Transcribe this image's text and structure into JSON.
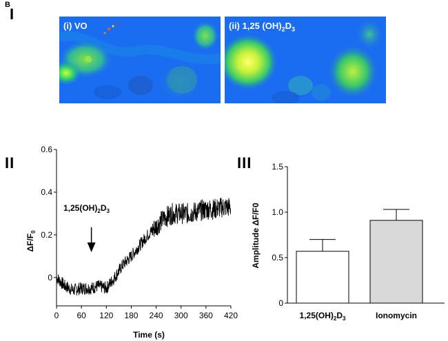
{
  "figure": {
    "panel_letter": "B",
    "panel_I": "I",
    "panel_II": "II",
    "panel_III": "III"
  },
  "images": [
    {
      "label_main": "(i) VO",
      "label_sub": ""
    },
    {
      "label_main": "(ii) 1,25 (OH)",
      "label_sub": "2",
      "label_tail": "D",
      "label_sub2": "3"
    }
  ],
  "colors": {
    "bar1": "#ffffff",
    "bar2": "#d9d9d9",
    "trace": "#000000",
    "cell_bg": "#1a6cf0"
  },
  "chart_data": [
    {
      "type": "line",
      "title": "",
      "xlabel": "Time (s)",
      "ylabel_main": "ΔF/F",
      "ylabel_sub": "0",
      "xlim": [
        0,
        420
      ],
      "ylim": [
        -0.12,
        0.6
      ],
      "xticks": [
        0,
        60,
        120,
        180,
        240,
        300,
        360,
        420
      ],
      "yticks": [
        0,
        0.2,
        0.4,
        0.6
      ],
      "ytick_labels": [
        "0",
        "0.2",
        "0.4",
        "0.6"
      ],
      "annotation": {
        "text_main": "1,25(OH)",
        "sub1": "2",
        "mid": "D",
        "sub2": "3",
        "arrow_x": 84
      },
      "series": [
        {
          "name": "ΔF/F0",
          "x": [
            0,
            20,
            40,
            60,
            84,
            100,
            120,
            140,
            160,
            180,
            200,
            220,
            240,
            260,
            280,
            300,
            320,
            340,
            360,
            380,
            400,
            420
          ],
          "y": [
            0.0,
            -0.04,
            -0.06,
            -0.05,
            -0.05,
            -0.04,
            -0.05,
            0.0,
            0.06,
            0.1,
            0.15,
            0.2,
            0.24,
            0.28,
            0.3,
            0.3,
            0.3,
            0.31,
            0.32,
            0.32,
            0.33,
            0.33
          ]
        }
      ]
    },
    {
      "type": "bar",
      "title": "",
      "xlabel": "",
      "ylabel": "Amplitude ΔF/F0",
      "ylim": [
        0,
        1.5
      ],
      "yticks": [
        0,
        0.5,
        1.0,
        1.5
      ],
      "ytick_labels": [
        "0",
        "0.5",
        "1.0",
        "1.5"
      ],
      "categories": [
        "1,25(OH)2D3",
        "Ionomycin"
      ],
      "category_labels": [
        {
          "main": "1,25(OH)",
          "sub1": "2",
          "mid": "D",
          "sub2": "3"
        },
        {
          "main": "Ionomycin",
          "sub1": "",
          "mid": "",
          "sub2": ""
        }
      ],
      "values": [
        0.57,
        0.91
      ],
      "errors": [
        0.13,
        0.12
      ]
    }
  ]
}
